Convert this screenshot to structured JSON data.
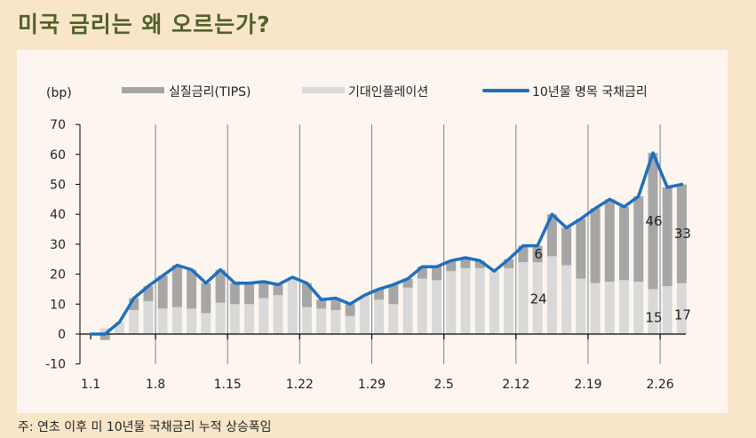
{
  "page": {
    "title": "미국 금리는 왜 오르는가?",
    "note": "주: 연초 이후 미 10년물 국채금리 누적 상승폭임"
  },
  "colors": {
    "background": "#f9e6c9",
    "panel": "#fdf6f0",
    "title": "#4f6228",
    "real_bar": "#a6a6a6",
    "inflation_bar": "#d9d9d9",
    "line": "#1f6fbf"
  },
  "chart_data": {
    "type": "bar",
    "subtype": "stacked bar + line",
    "title": "미국 금리는 왜 오르는가?",
    "ylabel": "(bp)",
    "xlabel": "",
    "ylim": [
      -10,
      70
    ],
    "yticks": [
      -10,
      0,
      10,
      20,
      30,
      40,
      50,
      60,
      70
    ],
    "grid": "vertical lines at weekly ticks",
    "legend_position": "top",
    "x_tick_labels": [
      "1.1",
      "1.8",
      "1.15",
      "1.22",
      "1.29",
      "2.5",
      "2.12",
      "2.19",
      "2.26"
    ],
    "x_tick_indices": [
      0,
      5,
      10,
      15,
      20,
      25,
      30,
      35,
      40
    ],
    "legend": [
      "실질금리(TIPS)",
      "기대인플레이션",
      "10년물 명목 국채금리"
    ],
    "series": [
      {
        "name": "실질금리(TIPS)",
        "type": "bar",
        "values": [
          0,
          -2,
          0,
          4,
          5,
          11,
          14,
          13,
          10,
          11,
          7,
          7,
          5.5,
          3.5,
          0,
          8,
          3,
          4,
          4,
          0,
          3.5,
          6.5,
          3,
          4,
          4.5,
          3.5,
          3.5,
          2.5,
          0,
          3,
          5.5,
          5.5,
          14,
          12.5,
          20,
          25,
          27.5,
          24.5,
          28.5,
          45.5,
          33,
          33
        ]
      },
      {
        "name": "기대인플레이션",
        "type": "bar",
        "values": [
          0,
          2,
          4,
          8,
          11,
          8.5,
          9,
          8.5,
          7,
          10.5,
          10,
          10,
          12,
          13,
          19,
          9,
          8.5,
          8,
          6,
          13,
          11.5,
          10,
          15.5,
          18.5,
          18,
          21,
          22,
          22,
          21,
          22,
          24,
          24,
          26,
          23,
          18.5,
          17,
          17.5,
          18,
          17.5,
          15,
          16,
          17
        ]
      },
      {
        "name": "10년물 명목 국채금리",
        "type": "line",
        "values": [
          0,
          0,
          4,
          12,
          16,
          19.5,
          23,
          21.5,
          17,
          21.5,
          17,
          17,
          17.5,
          16.5,
          19,
          17,
          11.5,
          12,
          10,
          13,
          15,
          16.5,
          18.5,
          22.5,
          22.5,
          24.5,
          25.5,
          24.5,
          21,
          25,
          29.5,
          29.5,
          40,
          35.5,
          38.5,
          42,
          45,
          42.5,
          46,
          60.5,
          49,
          50
        ]
      }
    ],
    "annotations": [
      {
        "index": 31,
        "text": "6",
        "series": "실질금리(TIPS)"
      },
      {
        "index": 31,
        "text": "24",
        "series": "기대인플레이션"
      },
      {
        "index": 39,
        "text": "46",
        "series": "실질금리(TIPS)"
      },
      {
        "index": 39,
        "text": "15",
        "series": "기대인플레이션"
      },
      {
        "index": 41,
        "text": "33",
        "series": "실질금리(TIPS)"
      },
      {
        "index": 41,
        "text": "17",
        "series": "기대인플레이션"
      }
    ]
  }
}
